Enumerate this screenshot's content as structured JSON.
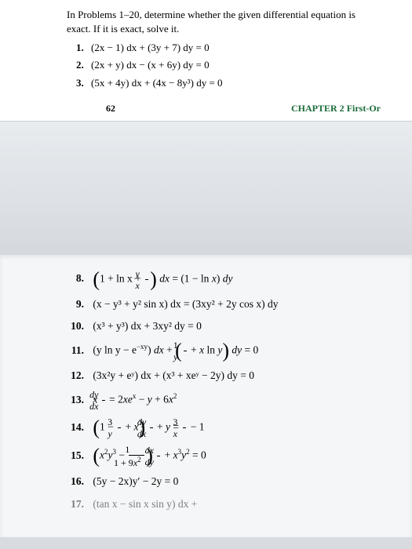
{
  "header": {
    "instructions": "In Problems 1–20, determine whether the given differential equation is exact. If it is exact, solve it.",
    "page_number": "62",
    "chapter_label": "CHAPTER 2",
    "chapter_title": "First-Or"
  },
  "top_problems": [
    {
      "num": "1.",
      "eq": "(2x − 1) dx + (3y + 7) dy = 0"
    },
    {
      "num": "2.",
      "eq": "(2x + y) dx − (x + 6y) dy = 0"
    },
    {
      "num": "3.",
      "eq": "(5x + 4y) dx + (4x − 8y³) dy = 0"
    }
  ],
  "bottom_problems": {
    "p8": {
      "num": "8."
    },
    "p9": {
      "num": "9.",
      "eq": "(x − y³ + y² sin x) dx = (3xy² + 2y cos x) dy"
    },
    "p10": {
      "num": "10.",
      "eq": "(x³ + y³) dx + 3xy² dy = 0"
    },
    "p11": {
      "num": "11."
    },
    "p12": {
      "num": "12.",
      "eq": "(3x²y + eʸ) dx + (x³ + xeʸ − 2y) dy = 0"
    },
    "p13": {
      "num": "13."
    },
    "p14": {
      "num": "14."
    },
    "p15": {
      "num": "15."
    },
    "p16": {
      "num": "16.",
      "eq": "(5y − 2x)y′ − 2y = 0"
    },
    "p17": {
      "num": "17.",
      "eq": "(tan x − sin x sin y) dx +"
    }
  },
  "colors": {
    "page_bg": "#ffffff",
    "gap_bg": "#dfe3e7",
    "bottom_bg": "#f5f6f7",
    "text": "#000000",
    "chapter": "#1a6b3a"
  }
}
